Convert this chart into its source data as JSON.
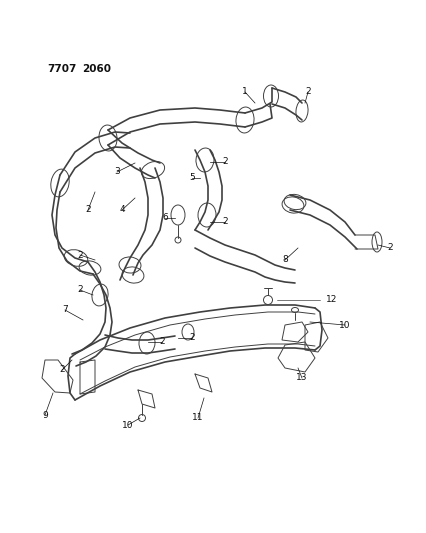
{
  "title1": "7707",
  "title2": "2060",
  "bg_color": "#ffffff",
  "lc": "#404040",
  "tc": "#111111",
  "figsize": [
    4.27,
    5.33
  ],
  "dpi": 100,
  "lw_pipe": 1.2,
  "lw_thin": 0.7,
  "lw_label": 0.5,
  "label_fs": 6.5
}
